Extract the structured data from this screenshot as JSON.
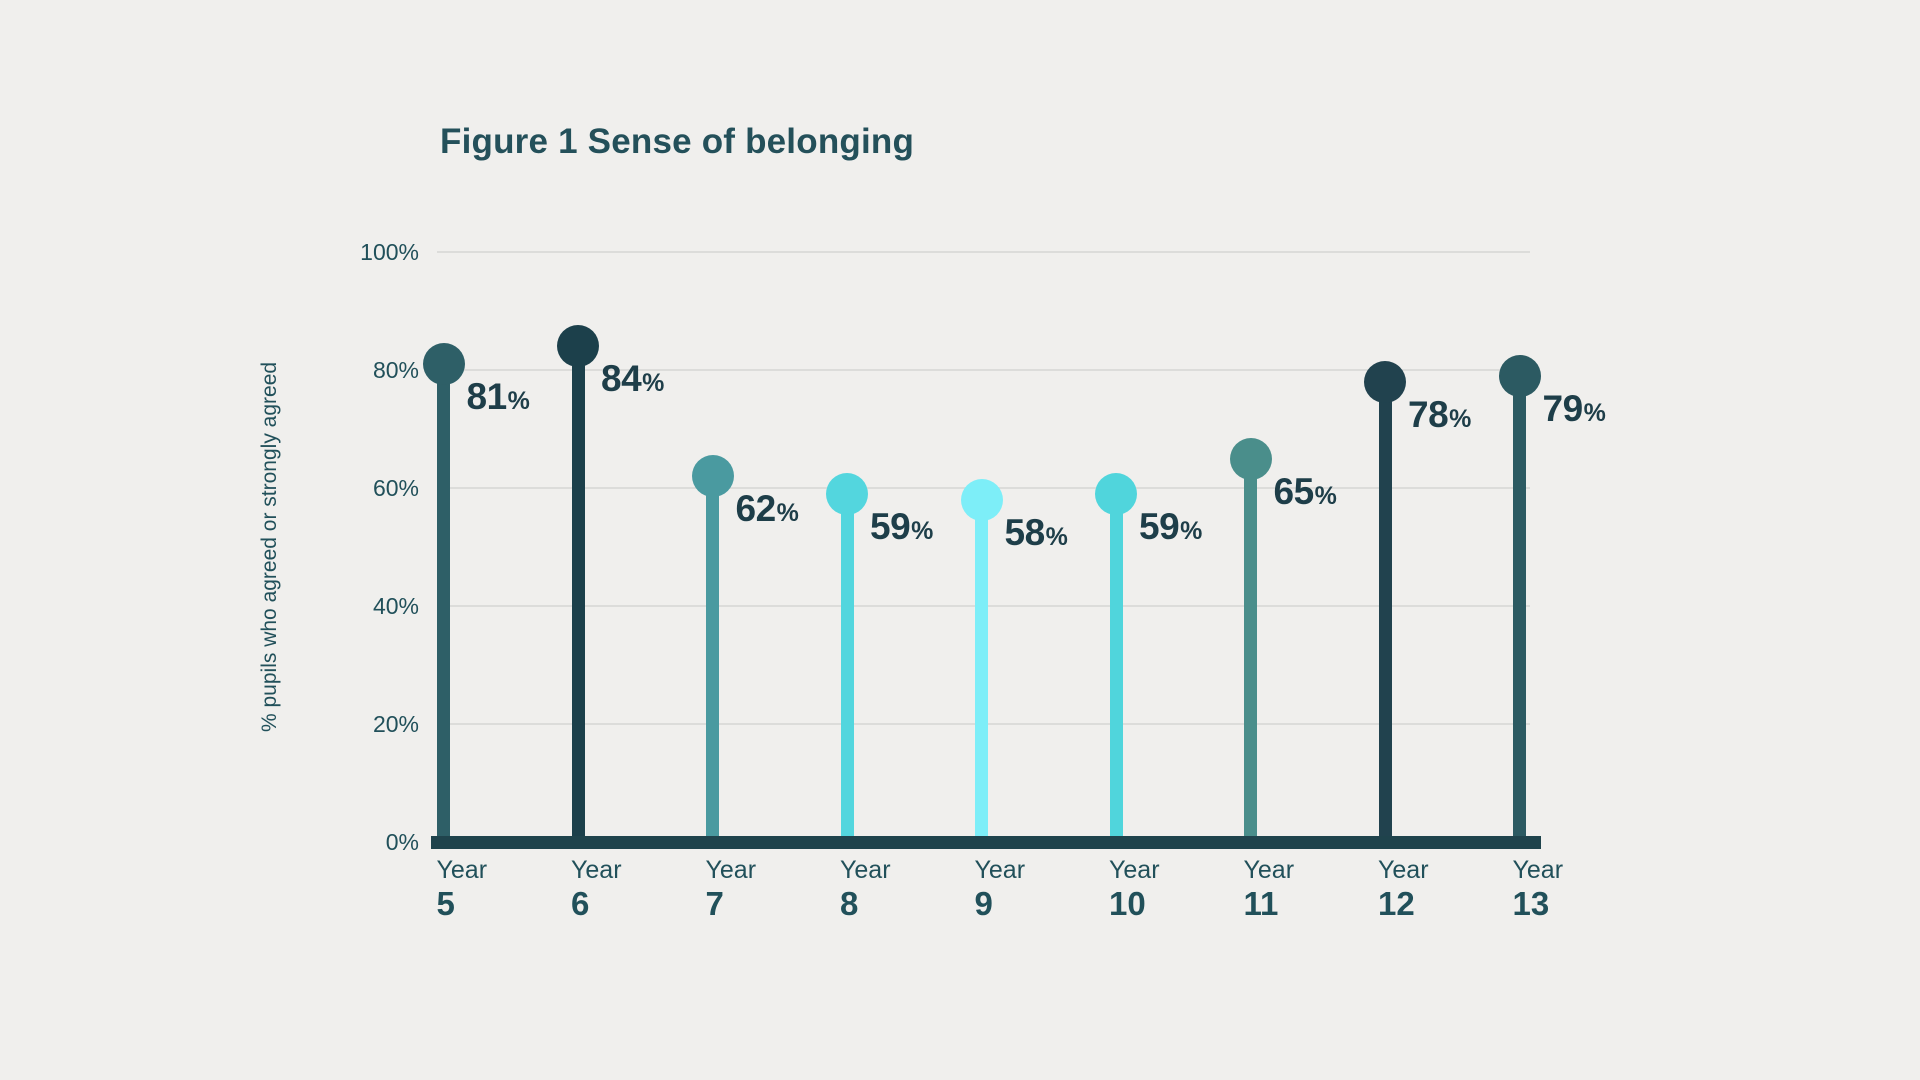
{
  "chart_data": {
    "type": "bar",
    "variant": "lollipop",
    "title": "Figure 1 Sense of belonging",
    "ylabel": "% pupils who agreed or strongly agreed",
    "xlabel": "",
    "categories": [
      "Year 5",
      "Year 6",
      "Year 7",
      "Year 8",
      "Year 9",
      "Year 10",
      "Year 11",
      "Year 12",
      "Year 13"
    ],
    "values": [
      81,
      84,
      62,
      59,
      58,
      59,
      65,
      78,
      79
    ],
    "value_suffix": "%",
    "ylim": [
      0,
      100
    ],
    "ytick_labels": [
      "0%",
      "20%",
      "40%",
      "60%",
      "80%",
      "100%"
    ],
    "yticks": [
      0,
      20,
      40,
      60,
      80,
      100
    ],
    "grid": true,
    "legend_position": "none",
    "point_colors": [
      "#2E5F67",
      "#1C404B",
      "#4A9AA0",
      "#53D6DE",
      "#7DEEF8",
      "#50D5DC",
      "#4A8E8B",
      "#21424E",
      "#2C5A62"
    ]
  },
  "colors": {
    "background": "#F0EFED",
    "title_text": "#24505A",
    "axis_text": "#21505A",
    "value_text": "#1E3E49",
    "axis_line": "#1F434C",
    "gridline": "#DCDCDA"
  }
}
